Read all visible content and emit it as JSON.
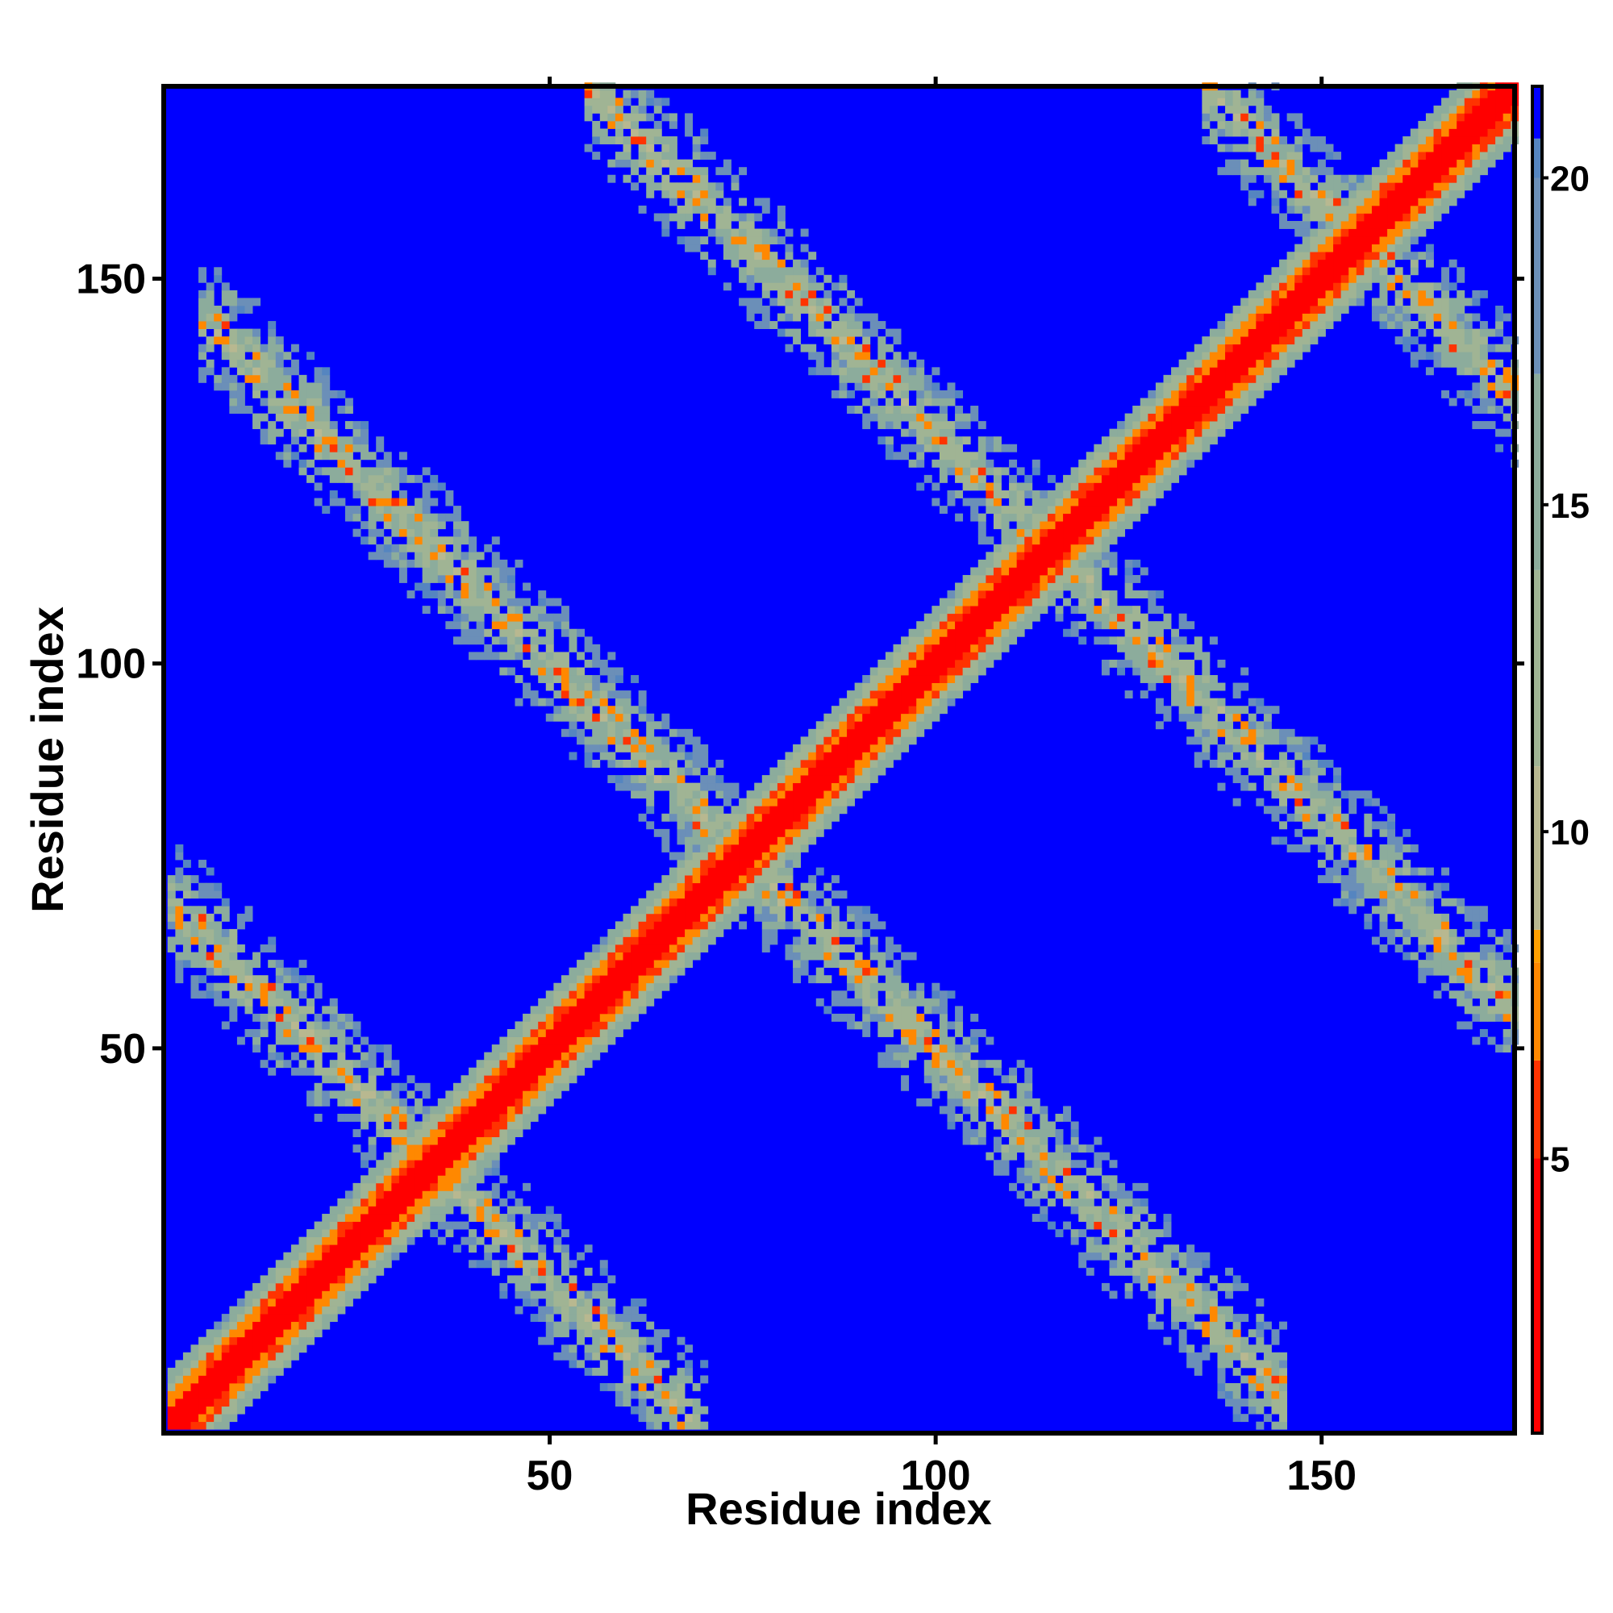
{
  "chart_data": {
    "type": "heatmap",
    "title": "",
    "xlabel": "Residue index",
    "ylabel": "Residue index",
    "n_residues": 175,
    "xlim": [
      1,
      175
    ],
    "ylim": [
      1,
      175
    ],
    "x_ticks": [
      50,
      100,
      150
    ],
    "y_ticks": [
      50,
      100,
      150
    ],
    "x_tick_labels": [
      "50",
      "100",
      "150"
    ],
    "y_tick_labels": [
      "50",
      "100",
      "150"
    ],
    "colorbar": {
      "range": [
        0.8,
        21.4
      ],
      "ticks": [
        5,
        10,
        15,
        20
      ],
      "tick_labels": [
        "5",
        "10",
        "15",
        "20"
      ],
      "placement": "right",
      "stops": [
        {
          "value": 0.8,
          "color": "#ff0000"
        },
        {
          "value": 5.0,
          "color": "#ff3300"
        },
        {
          "value": 6.5,
          "color": "#ff8800"
        },
        {
          "value": 8.0,
          "color": "#ffa000"
        },
        {
          "value": 8.5,
          "color": "#b8b890"
        },
        {
          "value": 11.0,
          "color": "#a0b494"
        },
        {
          "value": 14.0,
          "color": "#8cac9c"
        },
        {
          "value": 17.0,
          "color": "#6b8fb8"
        },
        {
          "value": 20.0,
          "color": "#5585c0"
        },
        {
          "value": 20.6,
          "color": "#0000ff"
        }
      ]
    },
    "background_color": "#0000ff",
    "description_features": {
      "diagonal_contacts": "residue i near i (distance < 8) along full main diagonal",
      "anti_diagonal_bands": [
        {
          "sum_i_plus_j": 70,
          "range_i": [
            1,
            70
          ]
        },
        {
          "sum_i_plus_j": 150,
          "range_i": [
            5,
            145
          ]
        },
        {
          "sum_i_plus_j": 230,
          "range_i": [
            55,
            175
          ]
        },
        {
          "sum_i_plus_j": 310,
          "range_i": [
            135,
            175
          ]
        }
      ]
    }
  },
  "axes": {
    "x_title": "Residue index",
    "y_title": "Residue index"
  }
}
